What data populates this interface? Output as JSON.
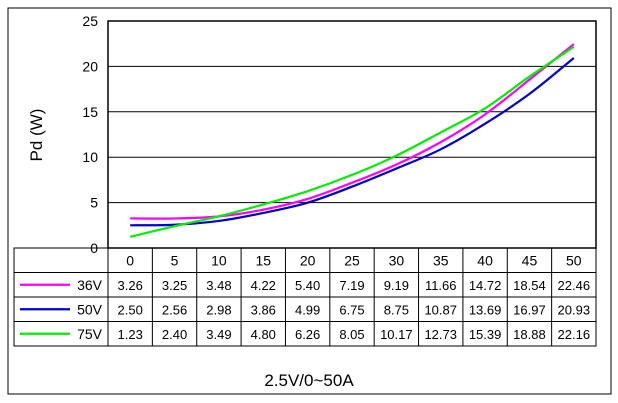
{
  "chart_data": {
    "type": "line",
    "title": "",
    "xlabel": "2.5V/0~50A",
    "ylabel": "Pd (W)",
    "x": [
      0,
      5,
      10,
      15,
      20,
      25,
      30,
      35,
      40,
      45,
      50
    ],
    "x_tick_labels": [
      "0",
      "5",
      "10",
      "15",
      "20",
      "25",
      "30",
      "35",
      "40",
      "45",
      "50"
    ],
    "ylim": [
      0,
      25
    ],
    "y_ticks": [
      0,
      5,
      10,
      15,
      20,
      25
    ],
    "y_tick_labels": [
      "0",
      "5",
      "10",
      "15",
      "20",
      "25"
    ],
    "grid": "horizontal",
    "legend": "data table below plot",
    "series": [
      {
        "name": "36V",
        "color": "#ff00ff",
        "values": [
          3.26,
          3.25,
          3.48,
          4.22,
          5.4,
          7.19,
          9.19,
          11.66,
          14.72,
          18.54,
          22.46
        ],
        "labels": [
          "3.26",
          "3.25",
          "3.48",
          "4.22",
          "5.40",
          "7.19",
          "9.19",
          "11.66",
          "14.72",
          "18.54",
          "22.46"
        ]
      },
      {
        "name": "50V",
        "color": "#0000cc",
        "values": [
          2.5,
          2.56,
          2.98,
          3.86,
          4.99,
          6.75,
          8.75,
          10.87,
          13.69,
          16.97,
          20.93
        ],
        "labels": [
          "2.50",
          "2.56",
          "2.98",
          "3.86",
          "4.99",
          "6.75",
          "8.75",
          "10.87",
          "13.69",
          "16.97",
          "20.93"
        ]
      },
      {
        "name": "75V",
        "color": "#00ee00",
        "values": [
          1.23,
          2.4,
          3.49,
          4.8,
          6.26,
          8.05,
          10.17,
          12.73,
          15.39,
          18.88,
          22.16
        ],
        "labels": [
          "1.23",
          "2.40",
          "3.49",
          "4.80",
          "6.26",
          "8.05",
          "10.17",
          "12.73",
          "15.39",
          "18.88",
          "22.16"
        ]
      }
    ]
  }
}
